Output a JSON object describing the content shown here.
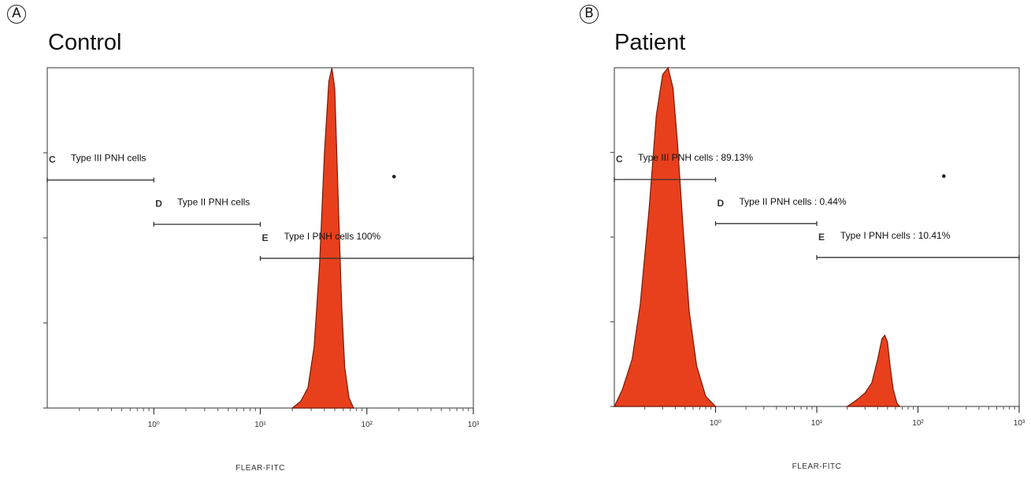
{
  "chart_data": [
    {
      "panel_label": "A",
      "title": "Control",
      "type": "area",
      "xlabel": "FLEAR-FITC",
      "x_scale": "log",
      "xlim": [
        0.1,
        1000
      ],
      "x_ticks": [
        "10⁰",
        "10¹",
        "10²",
        "10³"
      ],
      "x_tick_values": [
        1,
        10,
        100,
        1000
      ],
      "ylim": [
        0,
        100
      ],
      "gates": [
        {
          "letter": "C",
          "label": "Type III PNH cells",
          "range": [
            0.1,
            1
          ],
          "y": 67
        },
        {
          "letter": "D",
          "label": "Type II PNH cells",
          "range": [
            1,
            10
          ],
          "y": 54
        },
        {
          "letter": "E",
          "label": "Type I PNH cells 100%",
          "range": [
            10,
            1000
          ],
          "y": 44
        }
      ],
      "series": [
        {
          "color": "#e8401c",
          "x": [
            20,
            24,
            28,
            32,
            36,
            40,
            44,
            47,
            50,
            54,
            58,
            62,
            68,
            75
          ],
          "y": [
            0,
            2,
            6,
            18,
            42,
            75,
            96,
            100,
            94,
            60,
            30,
            12,
            3,
            0
          ]
        }
      ],
      "dot": {
        "x": 180,
        "y": 68
      }
    },
    {
      "panel_label": "B",
      "title": "Patient",
      "type": "area",
      "xlabel": "FLEAR-FITC",
      "x_scale": "log",
      "xlim": [
        0.1,
        1000
      ],
      "x_ticks": [
        "10⁰",
        "10¹",
        "10²",
        "10³"
      ],
      "x_tick_values": [
        1,
        10,
        100,
        1000
      ],
      "ylim": [
        0,
        100
      ],
      "gates": [
        {
          "letter": "C",
          "label": "Type III PNH cells : 89.13%",
          "range": [
            0.1,
            1
          ],
          "y": 67
        },
        {
          "letter": "D",
          "label": "Type II PNH cells : 0.44%",
          "range": [
            1,
            10
          ],
          "y": 54
        },
        {
          "letter": "E",
          "label": "Type I PNH cells : 10.41%",
          "range": [
            10,
            1000
          ],
          "y": 44
        }
      ],
      "series": [
        {
          "color": "#e8401c",
          "x": [
            0.1,
            0.12,
            0.15,
            0.18,
            0.22,
            0.26,
            0.3,
            0.34,
            0.38,
            0.42,
            0.48,
            0.55,
            0.65,
            0.8,
            1.0
          ],
          "y": [
            0,
            5,
            14,
            30,
            58,
            86,
            98,
            100,
            94,
            78,
            52,
            28,
            12,
            3,
            0
          ]
        },
        {
          "color": "#e8401c",
          "x": [
            20,
            25,
            30,
            35,
            40,
            44,
            47,
            50,
            53,
            57,
            62,
            66
          ],
          "y": [
            0,
            2,
            4,
            7,
            14,
            20,
            21,
            19,
            12,
            5,
            1,
            0
          ]
        }
      ],
      "dot": {
        "x": 180,
        "y": 68
      }
    }
  ]
}
